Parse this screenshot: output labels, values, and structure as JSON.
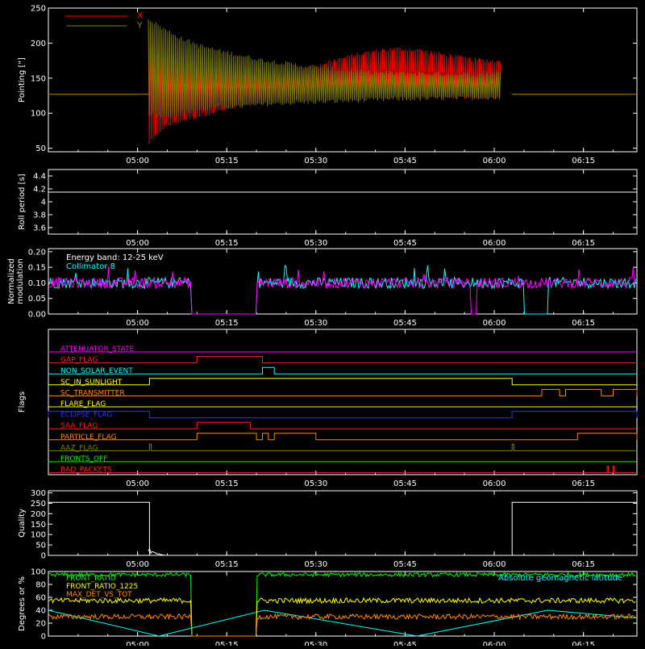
{
  "colors": {
    "background": "#000000",
    "axes": "#ffffff",
    "x_series": "#ff0000",
    "y_series": "#808000",
    "energy": "#ffffff",
    "collimator": "#00ffff",
    "magenta": "#ff00ff",
    "front_ratio": "#00ff00",
    "front_ratio_1225": "#ffff00",
    "max_det": "#ff8800",
    "geomag": "#00ffff"
  },
  "chart_data": [
    {
      "type": "line",
      "id": "pointing",
      "ylabel": "Pointing [\"]",
      "ylim": [
        45,
        250
      ],
      "yticks": [
        50,
        100,
        150,
        200,
        250
      ],
      "xticks": [
        "05:00",
        "05:15",
        "05:30",
        "05:45",
        "06:00",
        "06:15"
      ],
      "grid": false,
      "legend_position": "top-left",
      "series": [
        {
          "name": "X",
          "color": "#ff0000",
          "baseline": 127,
          "active_range": [
            "05:02",
            "06:03"
          ],
          "upper_envelope": [
            [
              302,
              230
            ],
            [
              310,
              175
            ],
            [
              320,
              165
            ],
            [
              330,
              162
            ],
            [
              340,
              160
            ],
            [
              350,
              158
            ],
            [
              360,
              155
            ],
            [
              370,
              158
            ],
            [
              380,
              162
            ],
            [
              390,
              170
            ],
            [
              400,
              178
            ],
            [
              410,
              185
            ],
            [
              420,
              190
            ],
            [
              430,
              192
            ],
            [
              440,
              190
            ],
            [
              450,
              185
            ],
            [
              460,
              180
            ],
            [
              470,
              176
            ],
            [
              482,
              174
            ]
          ],
          "lower_envelope": [
            [
              302,
              55
            ],
            [
              310,
              80
            ],
            [
              320,
              90
            ],
            [
              330,
              98
            ],
            [
              340,
              104
            ],
            [
              350,
              110
            ],
            [
              360,
              115
            ],
            [
              370,
              118
            ],
            [
              380,
              120
            ],
            [
              390,
              122
            ],
            [
              400,
              123
            ],
            [
              410,
              124
            ],
            [
              420,
              125
            ],
            [
              430,
              126
            ],
            [
              440,
              125
            ],
            [
              450,
              124
            ],
            [
              460,
              123
            ],
            [
              470,
              122
            ],
            [
              482,
              122
            ]
          ]
        },
        {
          "name": "Y",
          "color": "#808000",
          "baseline": 127,
          "active_range": [
            "05:02",
            "06:03"
          ],
          "upper_envelope": [
            [
              302,
              235
            ],
            [
              310,
              220
            ],
            [
              320,
              205
            ],
            [
              330,
              195
            ],
            [
              340,
              188
            ],
            [
              350,
              182
            ],
            [
              360,
              176
            ],
            [
              370,
              172
            ],
            [
              380,
              168
            ],
            [
              390,
              165
            ],
            [
              400,
              162
            ],
            [
              410,
              160
            ],
            [
              420,
              158
            ],
            [
              430,
              157
            ],
            [
              440,
              157
            ],
            [
              450,
              156
            ],
            [
              460,
              156
            ],
            [
              470,
              155
            ],
            [
              482,
              160
            ]
          ],
          "lower_envelope": [
            [
              302,
              100
            ],
            [
              310,
              95
            ],
            [
              320,
              100
            ],
            [
              330,
              105
            ],
            [
              340,
              108
            ],
            [
              350,
              110
            ],
            [
              360,
              112
            ],
            [
              370,
              114
            ],
            [
              380,
              115
            ],
            [
              390,
              116
            ],
            [
              400,
              117
            ],
            [
              410,
              118
            ],
            [
              420,
              119
            ],
            [
              430,
              120
            ],
            [
              440,
              120
            ],
            [
              450,
              121
            ],
            [
              460,
              121
            ],
            [
              470,
              122
            ],
            [
              482,
              122
            ]
          ]
        }
      ]
    },
    {
      "type": "line",
      "id": "roll",
      "ylabel": "Roll period [s]",
      "ylim": [
        3.5,
        4.5
      ],
      "yticks": [
        3.6,
        3.8,
        4.0,
        4.2,
        4.4
      ],
      "xticks": [
        "05:00",
        "05:15",
        "05:30",
        "05:45",
        "06:00",
        "06:15"
      ],
      "series": [
        {
          "name": "",
          "color": "#ffffff",
          "values": [
            4.15
          ]
        }
      ]
    },
    {
      "type": "line",
      "id": "modulation",
      "ylabel": "Normalized modulation",
      "ylim": [
        0,
        0.21
      ],
      "yticks": [
        0.0,
        0.05,
        0.1,
        0.15,
        0.2
      ],
      "yticklabels": [
        "0.00",
        "0.05",
        "0.10",
        "0.15",
        "0.20"
      ],
      "xticks": [
        "05:00",
        "05:15",
        "05:30",
        "05:45",
        "06:00",
        "06:15"
      ],
      "annotations": [
        "Energy band: 12-25 keV",
        "Collimator 8"
      ],
      "series": [
        {
          "name": "Collimator 8",
          "color": "#00ffff",
          "level": 0.1,
          "gaps": [
            [
              "05:09",
              "05:20"
            ],
            [
              "06:05",
              "06:09"
            ]
          ]
        },
        {
          "name": "",
          "color": "#ff00ff",
          "level": 0.1,
          "gaps": [
            [
              "05:09",
              "05:20"
            ],
            [
              "05:56",
              "05:57"
            ]
          ]
        }
      ]
    },
    {
      "type": "line",
      "id": "flags",
      "ylabel": "Flags",
      "xticks": [
        "05:00",
        "05:15",
        "05:30",
        "05:45",
        "06:00",
        "06:15"
      ],
      "series": [
        {
          "name": "ATTENUATOR_STATE",
          "color": "#ff00ff",
          "segments": []
        },
        {
          "name": "GAP_FLAG",
          "color": "#ff2020",
          "segments": [
            [
              "05:10",
              "05:21"
            ]
          ]
        },
        {
          "name": "NON_SOLAR_EVENT",
          "color": "#00ffff",
          "segments": [
            [
              "05:21",
              "05:23"
            ]
          ]
        },
        {
          "name": "SC_IN_SUNLIGHT",
          "color": "#ffff00",
          "segments": [
            [
              "05:02",
              "06:03"
            ]
          ]
        },
        {
          "name": "SC_TRANSMITTER",
          "color": "#ff8800",
          "segments": [
            [
              "06:08",
              "06:11"
            ],
            [
              "06:12",
              "06:18"
            ],
            [
              "06:20",
              "06:24"
            ]
          ]
        },
        {
          "name": "FLARE_FLAG",
          "color": "#ffff00",
          "segments": []
        },
        {
          "name": "ECLIPSE_FLAG",
          "color": "#3030ff",
          "segments": [
            [
              "04:45",
              "05:02"
            ],
            [
              "06:03",
              "06:24"
            ]
          ]
        },
        {
          "name": "SAA_FLAG",
          "color": "#ff2020",
          "segments": [
            [
              "05:10",
              "05:19"
            ]
          ]
        },
        {
          "name": "PARTICLE_FLAG",
          "color": "#ff8800",
          "segments": [
            [
              "05:10",
              "05:20"
            ],
            [
              "05:21",
              "05:22"
            ],
            [
              "05:23",
              "05:30"
            ],
            [
              "06:14",
              "06:24"
            ]
          ]
        },
        {
          "name": "AAZ_FLAG",
          "color": "#808000",
          "segments": [
            [
              "05:02",
              "05:02.3"
            ],
            [
              "06:03",
              "06:03.3"
            ]
          ]
        },
        {
          "name": "FRONTS_OFF",
          "color": "#00ff00",
          "segments": []
        },
        {
          "name": "BAD_PACKETS",
          "color": "#ff2020",
          "segments": [
            [
              "06:19",
              "06:19.2"
            ],
            [
              "06:20",
              "06:20.2"
            ]
          ]
        }
      ]
    },
    {
      "type": "line",
      "id": "quality",
      "ylabel": "Quality",
      "ylim": [
        0,
        310
      ],
      "yticks": [
        0,
        50,
        100,
        150,
        200,
        250,
        300
      ],
      "xticks": [
        "05:00",
        "05:15",
        "05:30",
        "05:45",
        "06:00",
        "06:15"
      ],
      "series": [
        {
          "name": "",
          "color": "#ffffff",
          "segments": [
            [
              "04:45",
              "05:02",
              255
            ],
            [
              "05:02",
              "06:03",
              0
            ],
            [
              "06:03",
              "06:24",
              255
            ]
          ]
        }
      ]
    },
    {
      "type": "line",
      "id": "ratios",
      "ylabel": "Degrees or %",
      "ylim": [
        0,
        100
      ],
      "yticks": [
        0,
        20,
        40,
        60,
        80,
        100
      ],
      "xticks": [
        "05:00",
        "05:15",
        "05:30",
        "05:45",
        "06:00",
        "06:15"
      ],
      "legend_position": "top-left",
      "series": [
        {
          "name": "FRONT_RATIO",
          "color": "#00ff00",
          "level": 95
        },
        {
          "name": "FRONT_RATIO_1225",
          "color": "#ffff00",
          "level": 55
        },
        {
          "name": "MAX_DET_VS_TOT",
          "color": "#ff8800",
          "level": 30
        },
        {
          "name": "Absolute geomagnetic latitude",
          "color": "#00ffff"
        }
      ]
    }
  ]
}
